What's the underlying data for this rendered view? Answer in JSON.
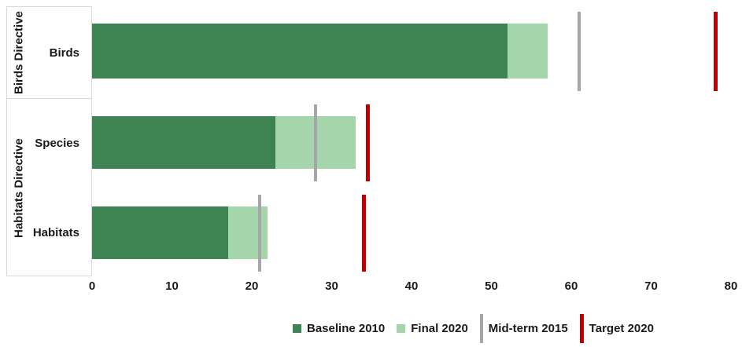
{
  "chart_data": {
    "type": "bar",
    "orientation": "horizontal",
    "stacking": "final 2020 drawn as increment stacked on baseline 2010",
    "title": "",
    "xlabel": "",
    "ylabel": "",
    "xlim": [
      0,
      80
    ],
    "x_ticks": [
      "0",
      "10",
      "20",
      "30",
      "40",
      "50",
      "60",
      "70",
      "80"
    ],
    "grid": "off",
    "legend_position": "bottom",
    "groups": [
      {
        "label": "Birds Directive"
      },
      {
        "label": "Habitats Directive"
      }
    ],
    "rows": [
      {
        "category": "Birds",
        "group": "Birds Directive",
        "baseline_2010": 52,
        "final_2020": 57,
        "mid_term_2015": 61,
        "target_2020": 78
      },
      {
        "category": "Species",
        "group": "Habitats Directive",
        "baseline_2010": 23,
        "final_2020": 33,
        "mid_term_2015": 28,
        "target_2020": 34.5
      },
      {
        "category": "Habitats",
        "group": "Habitats Directive",
        "baseline_2010": 17,
        "final_2020": 22,
        "mid_term_2015": 21,
        "target_2020": 34
      }
    ],
    "legend": [
      {
        "label": "Baseline 2010",
        "marker": "square",
        "color": "#3e8452"
      },
      {
        "label": "Final 2020",
        "marker": "square",
        "color": "#a5d6ab"
      },
      {
        "label": "Mid-term 2015",
        "marker": "vline",
        "color": "#a6a6a6"
      },
      {
        "label": "Target 2020",
        "marker": "vline",
        "color": "#c00000"
      }
    ],
    "colors": {
      "baseline_2010": "#3e8452",
      "final_2020": "#a5d6ab",
      "mid_term_2015": "#a6a6a6",
      "target_2020": "#c00000",
      "panel_border": "#d9d9d9",
      "text": "#1a1a1a"
    }
  }
}
